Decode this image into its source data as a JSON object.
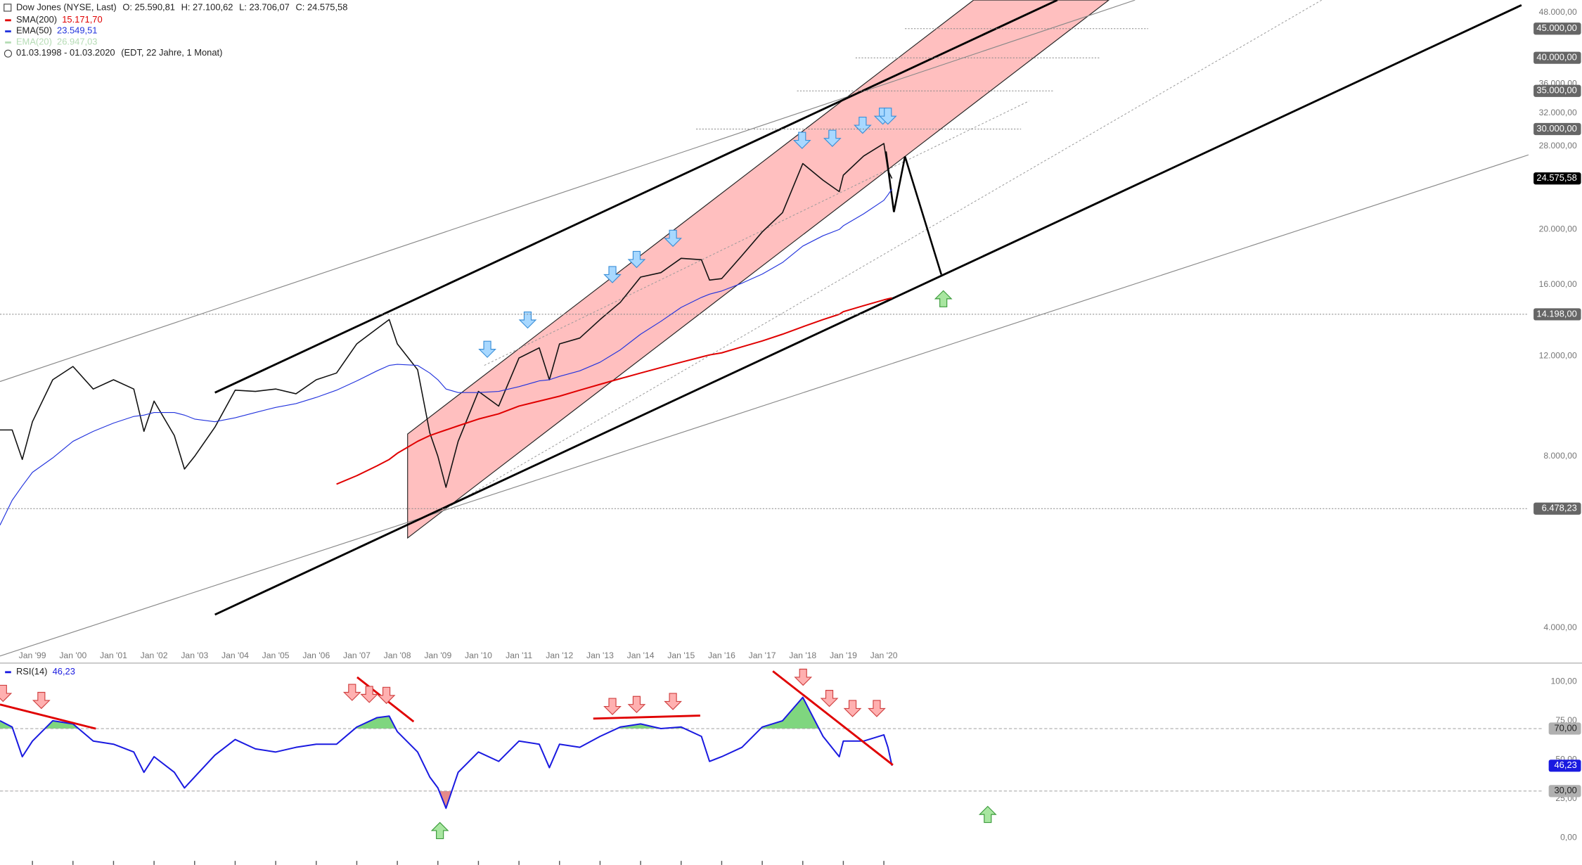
{
  "header": {
    "instrument": "Dow Jones (NYSE, Last)",
    "ohlc": [
      "O: 25.590,81",
      "H: 27.100,62",
      "L: 23.706,07",
      "C: 24.575,58"
    ],
    "range": "01.03.1998 - 01.03.2020",
    "range_note": "(EDT, 22 Jahre, 1 Monat)"
  },
  "chart_data": [
    {
      "type": "line",
      "log_scale": true,
      "xlim": [
        1998.2,
        2035.9
      ],
      "ylim": [
        3500,
        50500
      ],
      "xticks": [
        {
          "value": 1999,
          "label": "Jan '99"
        },
        {
          "value": 2000,
          "label": "Jan '00"
        },
        {
          "value": 2001,
          "label": "Jan '01"
        },
        {
          "value": 2002,
          "label": "Jan '02"
        },
        {
          "value": 2003,
          "label": "Jan '03"
        },
        {
          "value": 2004,
          "label": "Jan '04"
        },
        {
          "value": 2005,
          "label": "Jan '05"
        },
        {
          "value": 2006,
          "label": "Jan '06"
        },
        {
          "value": 2007,
          "label": "Jan '07"
        },
        {
          "value": 2008,
          "label": "Jan '08"
        },
        {
          "value": 2009,
          "label": "Jan '09"
        },
        {
          "value": 2010,
          "label": "Jan '10"
        },
        {
          "value": 2011,
          "label": "Jan '11"
        },
        {
          "value": 2012,
          "label": "Jan '12"
        },
        {
          "value": 2013,
          "label": "Jan '13"
        },
        {
          "value": 2014,
          "label": "Jan '14"
        },
        {
          "value": 2015,
          "label": "Jan '15"
        },
        {
          "value": 2016,
          "label": "Jan '16"
        },
        {
          "value": 2017,
          "label": "Jan '17"
        },
        {
          "value": 2018,
          "label": "Jan '18"
        },
        {
          "value": 2019,
          "label": "Jan '19"
        },
        {
          "value": 2020,
          "label": "Jan '20"
        }
      ],
      "yticks": [
        {
          "value": 4000,
          "label": "4.000,00"
        },
        {
          "value": 8000,
          "label": "8.000,00"
        },
        {
          "value": 12000,
          "label": "12.000,00"
        },
        {
          "value": 16000,
          "label": "16.000,00"
        },
        {
          "value": 20000,
          "label": "20.000,00"
        },
        {
          "value": 28000,
          "label": "28.000,00"
        },
        {
          "value": 32000,
          "label": "32.000,00"
        },
        {
          "value": 36000,
          "label": "36.000,00"
        },
        {
          "value": 48000,
          "label": "48.000,00"
        }
      ],
      "x": [
        1998.2,
        1998.5,
        1998.75,
        1999.0,
        1999.5,
        2000.0,
        2000.5,
        2001.0,
        2001.5,
        2001.75,
        2002.0,
        2002.5,
        2002.75,
        2003.0,
        2003.5,
        2004.0,
        2004.5,
        2005.0,
        2005.5,
        2006.0,
        2006.5,
        2007.0,
        2007.5,
        2007.8,
        2008.0,
        2008.5,
        2008.8,
        2009.0,
        2009.2,
        2009.5,
        2010.0,
        2010.5,
        2011.0,
        2011.5,
        2011.75,
        2012.0,
        2012.5,
        2013.0,
        2013.5,
        2014.0,
        2014.5,
        2015.0,
        2015.5,
        2015.7,
        2016.0,
        2016.5,
        2017.0,
        2017.5,
        2018.0,
        2018.5,
        2018.9,
        2019.0,
        2019.5,
        2020.0,
        2020.1,
        2020.2
      ],
      "series": [
        {
          "color": "#111111",
          "values": [
            8900,
            8900,
            7900,
            9200,
            10900,
            11500,
            10500,
            10900,
            10500,
            8850,
            10000,
            8700,
            7600,
            8000,
            9000,
            10450,
            10400,
            10500,
            10300,
            10900,
            11200,
            12600,
            13400,
            13900,
            12600,
            11350,
            8800,
            8000,
            7060,
            8500,
            10400,
            9800,
            11900,
            12400,
            10900,
            12600,
            12900,
            13900,
            14900,
            16500,
            16800,
            17800,
            17700,
            16300,
            16400,
            18000,
            19800,
            21400,
            26100,
            24400,
            23300,
            24900,
            26900,
            28300,
            25400,
            24575.58
          ]
        },
        {
          "name": "SMA(200)",
          "last_label": "15.171,70",
          "color": "#e00000",
          "values": [
            null,
            null,
            null,
            null,
            null,
            null,
            null,
            null,
            null,
            null,
            null,
            null,
            null,
            null,
            null,
            null,
            null,
            null,
            null,
            null,
            7150,
            7400,
            7700,
            7900,
            8100,
            8500,
            8700,
            8800,
            8900,
            9050,
            9300,
            9500,
            9800,
            10000,
            10100,
            10200,
            10450,
            10700,
            10950,
            11200,
            11450,
            11700,
            11950,
            12050,
            12150,
            12450,
            12750,
            13100,
            13500,
            13900,
            14200,
            14350,
            14700,
            15050,
            15110,
            15171.7
          ]
        },
        {
          "name": "EMA(50)",
          "last_label": "23.549,51",
          "color": "#2233dd",
          "values": [
            6060,
            6700,
            7100,
            7500,
            7950,
            8500,
            8850,
            9150,
            9400,
            9450,
            9550,
            9550,
            9450,
            9300,
            9200,
            9350,
            9550,
            9750,
            9900,
            10150,
            10450,
            10850,
            11300,
            11550,
            11600,
            11550,
            11200,
            10900,
            10500,
            10350,
            10350,
            10400,
            10600,
            10850,
            10900,
            11050,
            11300,
            11700,
            12300,
            13100,
            13800,
            14600,
            15200,
            15400,
            15600,
            16100,
            16700,
            17500,
            18700,
            19500,
            20000,
            20300,
            21300,
            22500,
            23000,
            23549.51
          ]
        },
        {
          "name": "EMA(20)",
          "last_label": "26.947,03",
          "color": "#b5dcb5",
          "values": [
            null,
            null,
            null,
            null,
            null,
            null,
            null,
            null,
            null,
            null,
            null,
            null,
            null,
            null,
            null,
            null,
            null,
            null,
            null,
            null,
            null,
            null,
            null,
            null,
            null,
            null,
            null,
            null,
            null,
            null,
            null,
            null,
            null,
            null,
            null,
            null,
            null,
            null,
            null,
            null,
            null,
            null,
            null,
            null,
            null,
            null,
            null,
            null,
            null,
            null,
            null,
            null,
            null,
            null,
            null,
            null
          ]
        }
      ],
      "levels": [
        {
          "value": 45000,
          "label": "45.000,00",
          "color": "#666666"
        },
        {
          "value": 40000,
          "label": "40.000,00",
          "color": "#666666"
        },
        {
          "value": 35000,
          "label": "35.000,00",
          "color": "#666666"
        },
        {
          "value": 30000,
          "label": "30.000,00",
          "color": "#666666"
        },
        {
          "value": 24575.58,
          "label": "24.575,58",
          "color": "#000000"
        },
        {
          "value": 14198,
          "label": "14.198,00",
          "color": "#666666"
        },
        {
          "value": 6478.23,
          "label": "6.478,23",
          "color": "#666666"
        }
      ]
    },
    {
      "type": "line",
      "title": "RSI(14)",
      "last_label": "46,23",
      "color": "#1a1ae0",
      "ylim": [
        -16,
        110
      ],
      "yticks": [
        {
          "value": 0,
          "label": "0,00"
        },
        {
          "value": 25,
          "label": "25,00"
        },
        {
          "value": 50,
          "label": "50,00"
        },
        {
          "value": 75,
          "label": "75,00"
        },
        {
          "value": 100,
          "label": "100,00"
        }
      ],
      "values": [
        75,
        71,
        52,
        62,
        75,
        73,
        62,
        60,
        55,
        42,
        52,
        42,
        32,
        39,
        53,
        63,
        57,
        55,
        58,
        60,
        60,
        71,
        77,
        78,
        68,
        55,
        39,
        32,
        19,
        42,
        55,
        49,
        62,
        60,
        45,
        60,
        58,
        65,
        71,
        73,
        70,
        71,
        65,
        49,
        52,
        58,
        71,
        75,
        90,
        65,
        52,
        62,
        62,
        66,
        58,
        46.23
      ],
      "levels": [
        {
          "value": 70,
          "label": "70,00",
          "color": "#b0b0b0"
        },
        {
          "value": 30,
          "label": "30,00",
          "color": "#b0b0b0"
        }
      ],
      "overbought_color": "#7fd67f",
      "oversold_color": "#e68a8a"
    }
  ]
}
